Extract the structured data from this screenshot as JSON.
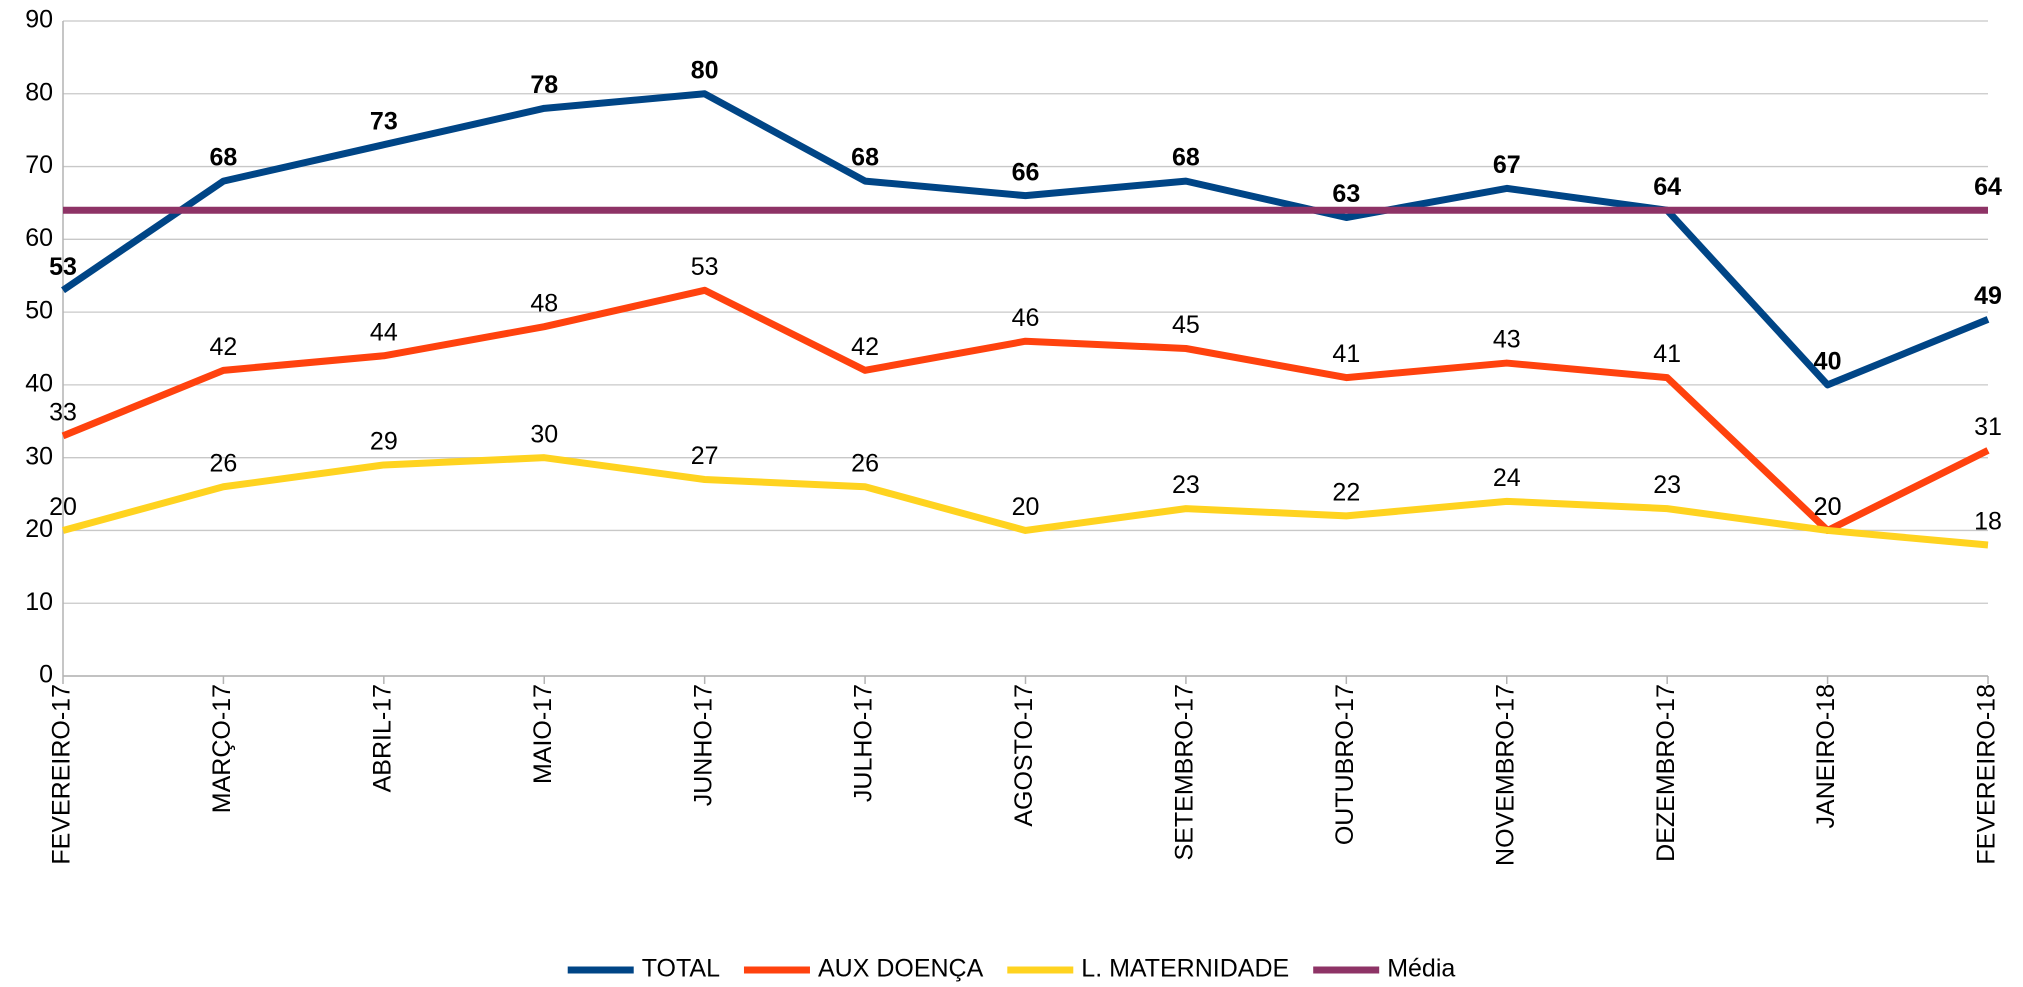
{
  "chart_data": {
    "type": "line",
    "categories": [
      "FEVEREIRO-17",
      "MARÇO-17",
      "ABRIL-17",
      "MAIO-17",
      "JUNHO-17",
      "JULHO-17",
      "AGOSTO-17",
      "SETEMBRO-17",
      "OUTUBRO-17",
      "NOVEMBRO-17",
      "DEZEMBRO-17",
      "JANEIRO-18",
      "FEVEREIRO-18"
    ],
    "series": [
      {
        "name": "TOTAL",
        "color": "#004586",
        "bold_labels": true,
        "values": [
          53,
          68,
          73,
          78,
          80,
          68,
          66,
          68,
          63,
          67,
          64,
          40,
          49
        ]
      },
      {
        "name": "AUX DOENÇA",
        "color": "#ff420e",
        "bold_labels": false,
        "values": [
          33,
          42,
          44,
          48,
          53,
          42,
          46,
          45,
          41,
          43,
          41,
          20,
          31
        ]
      },
      {
        "name": "L. MATERNIDADE",
        "color": "#ffd320",
        "bold_labels": false,
        "values": [
          20,
          26,
          29,
          30,
          27,
          26,
          20,
          23,
          22,
          24,
          23,
          20,
          18
        ]
      },
      {
        "name": "Média",
        "color": "#8e3366",
        "bold_labels": true,
        "label_last_only": true,
        "values": [
          64,
          64,
          64,
          64,
          64,
          64,
          64,
          64,
          64,
          64,
          64,
          64,
          64
        ]
      }
    ],
    "ylim": [
      0,
      90
    ],
    "yticks": [
      0,
      10,
      20,
      30,
      40,
      50,
      60,
      70,
      80,
      90
    ],
    "grid": true,
    "legend": "bottom"
  }
}
